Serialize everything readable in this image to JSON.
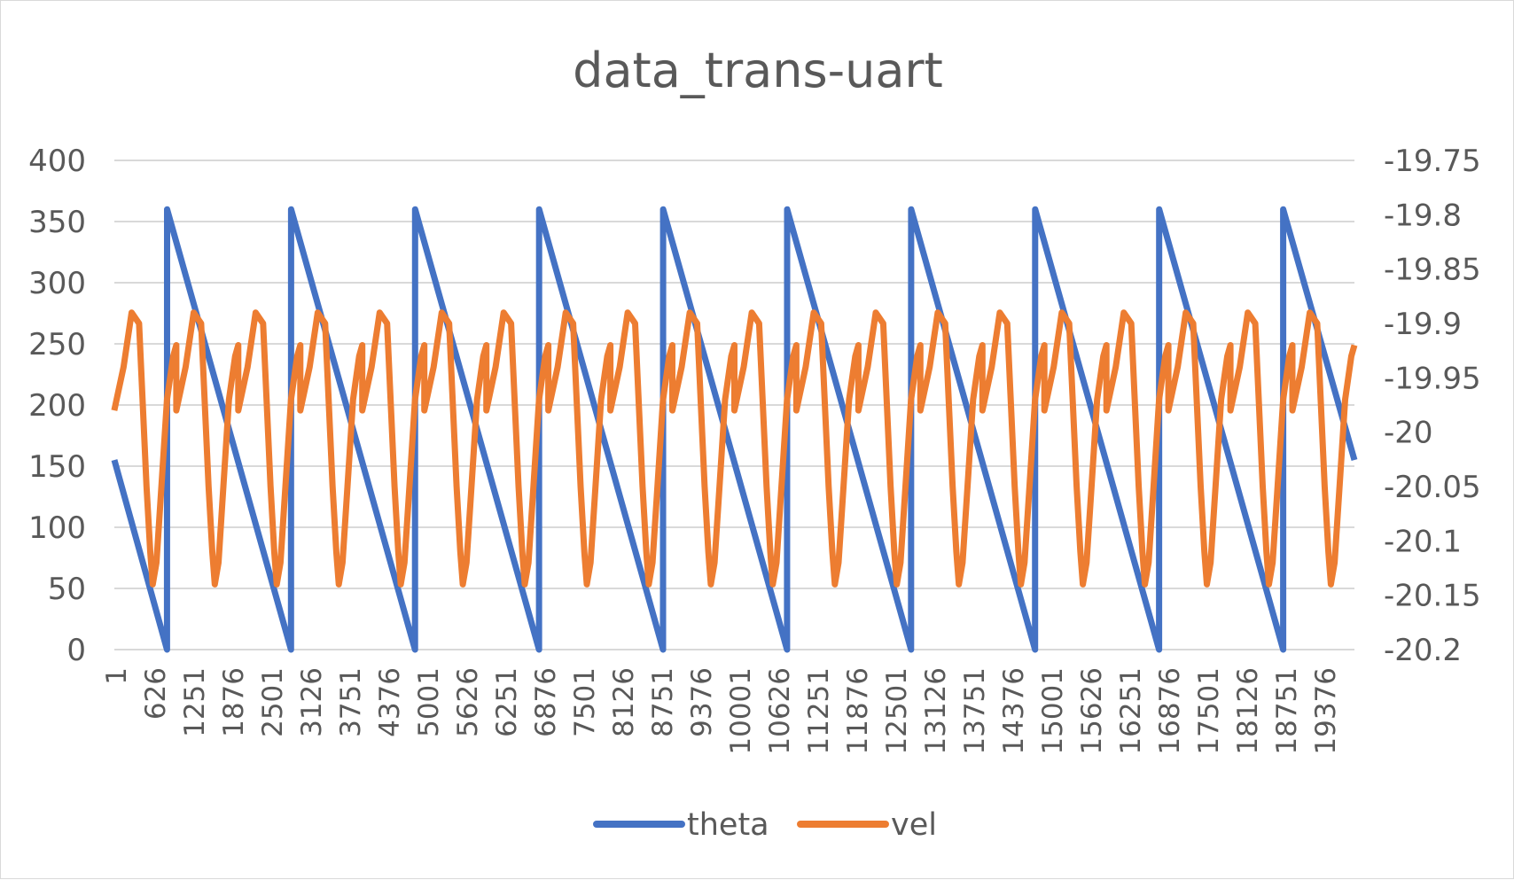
{
  "chart_data": {
    "type": "line",
    "title": "data_trans-uart",
    "x_tick_labels": [
      "1",
      "626",
      "1251",
      "1876",
      "2501",
      "3126",
      "3751",
      "4376",
      "5001",
      "5626",
      "6251",
      "6876",
      "7501",
      "8126",
      "8751",
      "9376",
      "10001",
      "10626",
      "11251",
      "11876",
      "12501",
      "13126",
      "13751",
      "14376",
      "15001",
      "15626",
      "16251",
      "16876",
      "17501",
      "18126",
      "18751",
      "19376"
    ],
    "x_range": [
      1,
      20000
    ],
    "y_left": {
      "ticks": [
        "400",
        "350",
        "300",
        "250",
        "200",
        "150",
        "100",
        "50",
        "0"
      ],
      "ylim": [
        0,
        400
      ]
    },
    "y_right": {
      "ticks": [
        "-19.75",
        "-19.8",
        "-19.85",
        "-19.9",
        "-19.95",
        "-20",
        "-20.05",
        "-20.1",
        "-20.15",
        "-20.2"
      ],
      "ylim": [
        -20.2,
        -19.75
      ]
    },
    "grid": true,
    "legend_position": "bottom",
    "series": [
      {
        "name": "theta",
        "axis": "left",
        "color": "#4472C4",
        "points": [
          [
            1,
            155
          ],
          [
            850,
            0
          ],
          [
            851,
            360
          ],
          [
            2850,
            0
          ],
          [
            2851,
            360
          ],
          [
            4850,
            0
          ],
          [
            4851,
            360
          ],
          [
            6850,
            0
          ],
          [
            6851,
            360
          ],
          [
            8850,
            0
          ],
          [
            8851,
            360
          ],
          [
            10850,
            0
          ],
          [
            10851,
            360
          ],
          [
            12850,
            0
          ],
          [
            12851,
            360
          ],
          [
            14850,
            0
          ],
          [
            14851,
            360
          ],
          [
            16850,
            0
          ],
          [
            16851,
            360
          ],
          [
            18850,
            0
          ],
          [
            18851,
            360
          ],
          [
            20000,
            155
          ]
        ]
      },
      {
        "name": "vel",
        "axis": "right",
        "color": "#ED7D31",
        "cycle_period": 2000,
        "cycle_shape": [
          [
            0,
            -19.98
          ],
          [
            150,
            -19.94
          ],
          [
            280,
            -19.89
          ],
          [
            400,
            -19.9
          ],
          [
            520,
            -20.05
          ],
          [
            580,
            -20.11
          ],
          [
            620,
            -20.14
          ],
          [
            680,
            -20.12
          ],
          [
            760,
            -20.05
          ],
          [
            850,
            -19.97
          ],
          [
            950,
            -19.93
          ],
          [
            1000,
            -19.92
          ]
        ],
        "points_note_free": true
      }
    ]
  }
}
